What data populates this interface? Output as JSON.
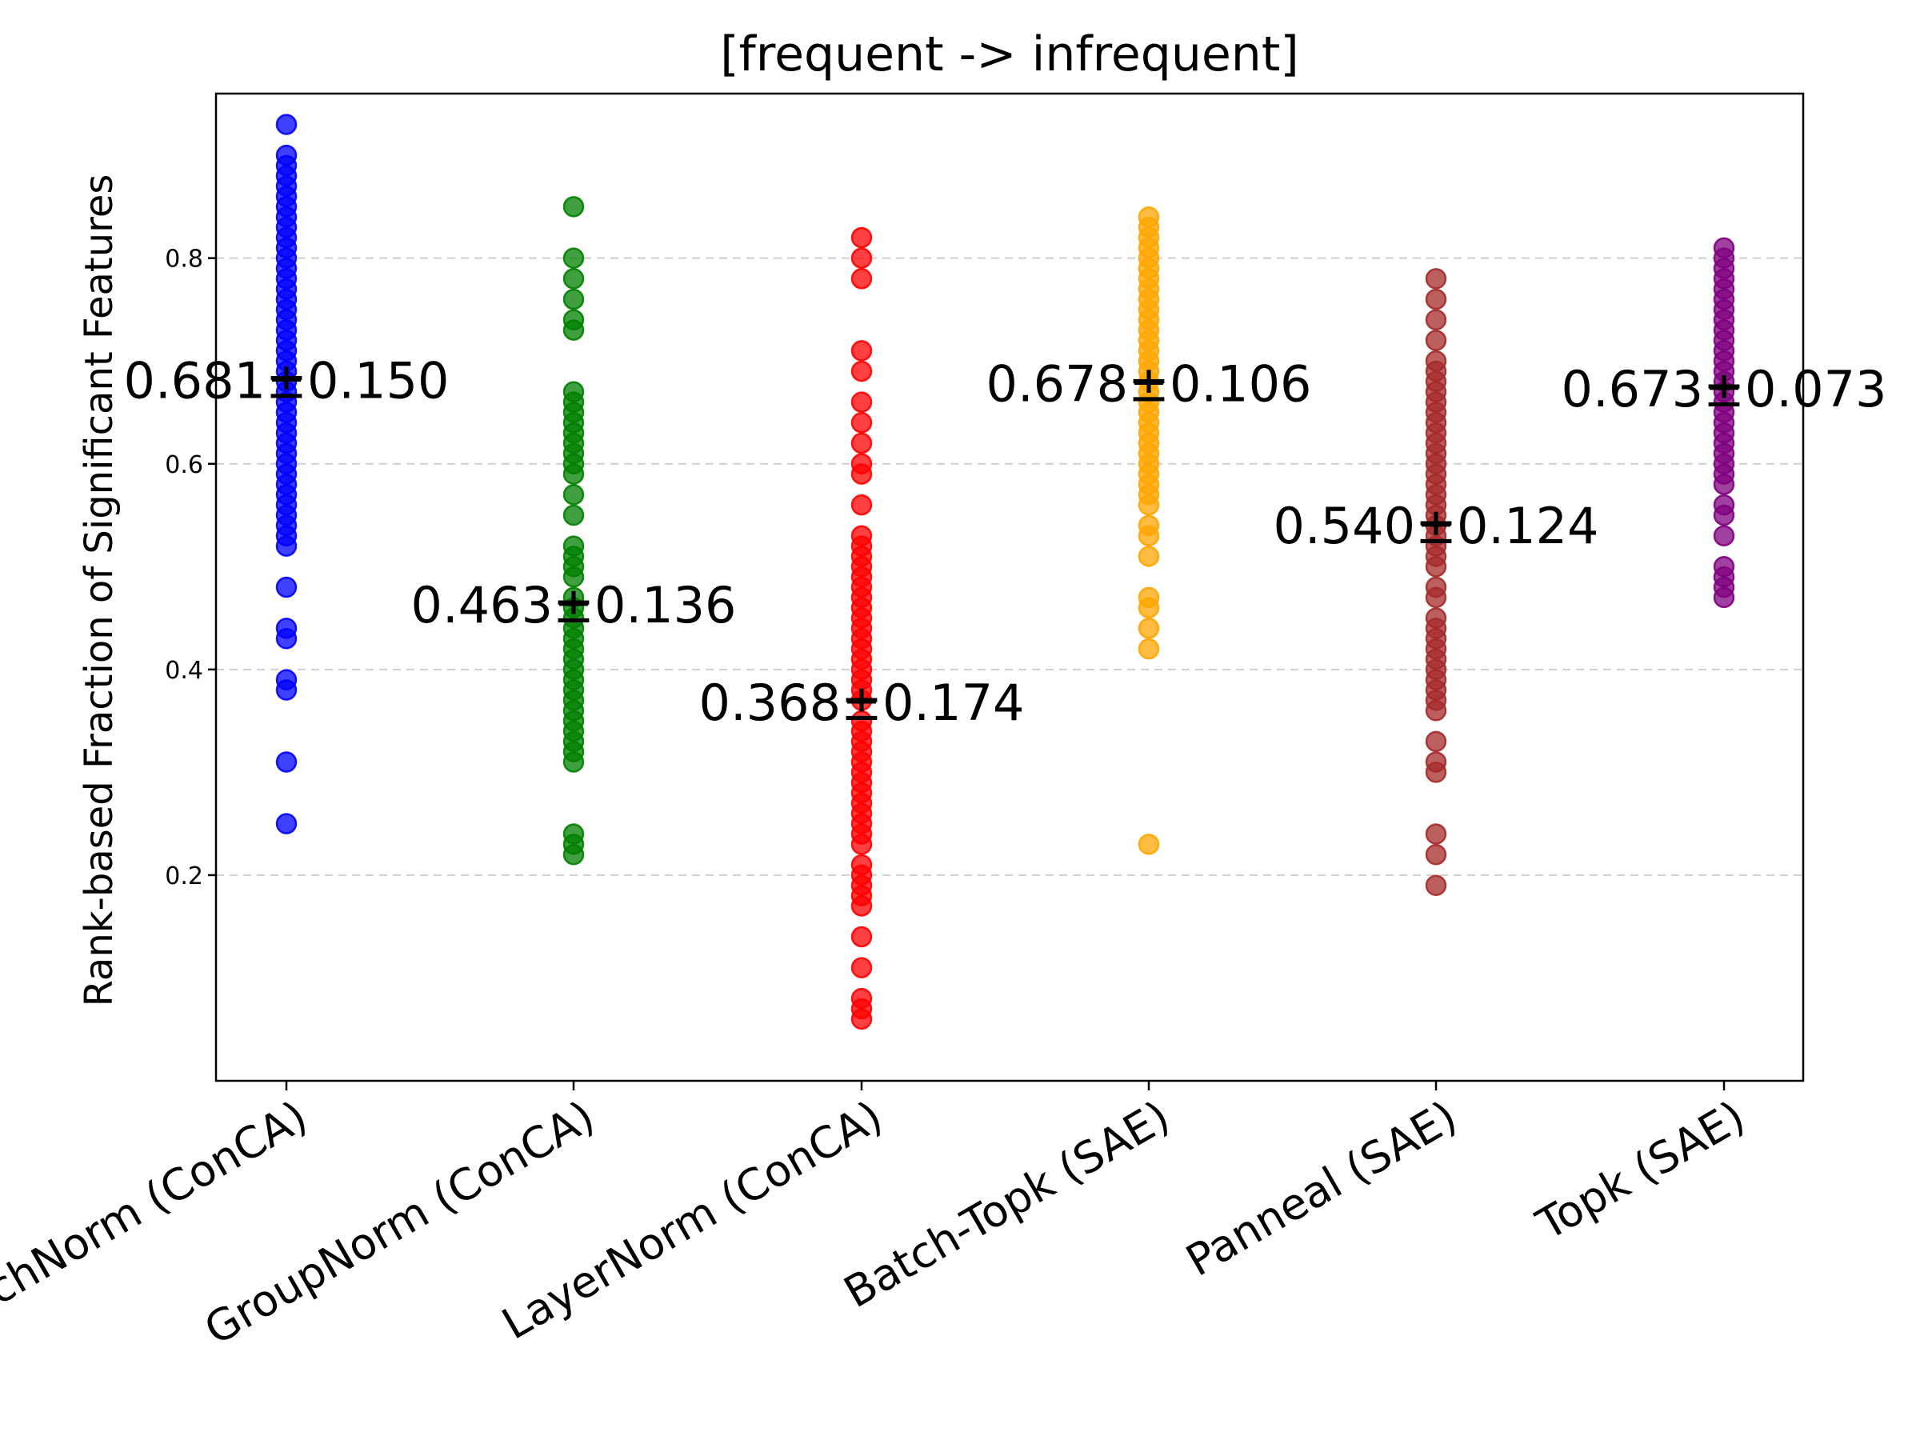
{
  "chart_data": {
    "type": "scatter",
    "title": "[frequent -> infrequent]",
    "xlabel": "",
    "ylabel": "Rank-based Fraction of Significant Features",
    "ylim": [
      0.0,
      0.96
    ],
    "yticks": [
      0.2,
      0.4,
      0.6,
      0.8
    ],
    "ytick_labels": [
      "0.2",
      "0.4",
      "0.6",
      "0.8"
    ],
    "grid": "horizontal dashed",
    "categories": [
      "BatchNorm (ConCA)",
      "GroupNorm (ConCA)",
      "LayerNorm (ConCA)",
      "Batch-Topk (SAE)",
      "Panneal (SAE)",
      "Topk (SAE)"
    ],
    "series": [
      {
        "name": "BatchNorm (ConCA)",
        "color": "#0000ff",
        "mean": 0.681,
        "std": 0.15,
        "annotation": "0.681±0.150",
        "values": [
          0.93,
          0.9,
          0.89,
          0.88,
          0.87,
          0.86,
          0.85,
          0.84,
          0.83,
          0.82,
          0.81,
          0.8,
          0.79,
          0.78,
          0.77,
          0.76,
          0.75,
          0.74,
          0.73,
          0.72,
          0.71,
          0.7,
          0.69,
          0.68,
          0.67,
          0.66,
          0.65,
          0.64,
          0.63,
          0.62,
          0.61,
          0.6,
          0.59,
          0.58,
          0.57,
          0.56,
          0.55,
          0.54,
          0.53,
          0.52,
          0.48,
          0.44,
          0.43,
          0.39,
          0.38,
          0.31,
          0.25
        ]
      },
      {
        "name": "GroupNorm (ConCA)",
        "color": "#008000",
        "mean": 0.463,
        "std": 0.136,
        "annotation": "0.463±0.136",
        "values": [
          0.85,
          0.8,
          0.78,
          0.76,
          0.74,
          0.73,
          0.67,
          0.66,
          0.65,
          0.64,
          0.63,
          0.62,
          0.61,
          0.6,
          0.59,
          0.57,
          0.55,
          0.52,
          0.51,
          0.5,
          0.49,
          0.47,
          0.46,
          0.45,
          0.44,
          0.43,
          0.42,
          0.41,
          0.4,
          0.39,
          0.38,
          0.37,
          0.36,
          0.35,
          0.34,
          0.33,
          0.32,
          0.31,
          0.24,
          0.23,
          0.22
        ]
      },
      {
        "name": "LayerNorm (ConCA)",
        "color": "#ff0000",
        "mean": 0.368,
        "std": 0.174,
        "annotation": "0.368±0.174",
        "values": [
          0.82,
          0.8,
          0.78,
          0.71,
          0.69,
          0.66,
          0.64,
          0.62,
          0.6,
          0.59,
          0.56,
          0.53,
          0.52,
          0.51,
          0.5,
          0.49,
          0.48,
          0.47,
          0.46,
          0.45,
          0.44,
          0.43,
          0.42,
          0.41,
          0.4,
          0.39,
          0.38,
          0.37,
          0.35,
          0.34,
          0.33,
          0.32,
          0.31,
          0.3,
          0.29,
          0.28,
          0.27,
          0.26,
          0.25,
          0.24,
          0.23,
          0.21,
          0.2,
          0.19,
          0.18,
          0.17,
          0.14,
          0.11,
          0.08,
          0.07,
          0.06
        ]
      },
      {
        "name": "Batch-Topk (SAE)",
        "color": "#ffa500",
        "mean": 0.678,
        "std": 0.106,
        "annotation": "0.678±0.106",
        "values": [
          0.84,
          0.83,
          0.82,
          0.81,
          0.8,
          0.79,
          0.78,
          0.77,
          0.76,
          0.75,
          0.74,
          0.73,
          0.72,
          0.71,
          0.7,
          0.69,
          0.68,
          0.67,
          0.66,
          0.65,
          0.64,
          0.63,
          0.62,
          0.61,
          0.6,
          0.59,
          0.58,
          0.57,
          0.56,
          0.54,
          0.53,
          0.51,
          0.47,
          0.46,
          0.44,
          0.42,
          0.23
        ]
      },
      {
        "name": "Panneal (SAE)",
        "color": "#a52a2a",
        "mean": 0.54,
        "std": 0.124,
        "annotation": "0.540±0.124",
        "values": [
          0.78,
          0.76,
          0.74,
          0.72,
          0.7,
          0.69,
          0.68,
          0.67,
          0.66,
          0.65,
          0.64,
          0.63,
          0.62,
          0.61,
          0.6,
          0.59,
          0.58,
          0.57,
          0.56,
          0.55,
          0.54,
          0.53,
          0.52,
          0.51,
          0.5,
          0.48,
          0.47,
          0.45,
          0.44,
          0.43,
          0.42,
          0.41,
          0.4,
          0.39,
          0.38,
          0.37,
          0.36,
          0.33,
          0.31,
          0.3,
          0.24,
          0.22,
          0.19
        ]
      },
      {
        "name": "Topk (SAE)",
        "color": "#800080",
        "mean": 0.673,
        "std": 0.073,
        "annotation": "0.673±0.073",
        "values": [
          0.81,
          0.8,
          0.79,
          0.78,
          0.77,
          0.76,
          0.75,
          0.74,
          0.73,
          0.72,
          0.71,
          0.7,
          0.69,
          0.68,
          0.67,
          0.66,
          0.65,
          0.64,
          0.63,
          0.62,
          0.61,
          0.6,
          0.59,
          0.58,
          0.56,
          0.55,
          0.53,
          0.5,
          0.49,
          0.48,
          0.47
        ]
      }
    ]
  }
}
